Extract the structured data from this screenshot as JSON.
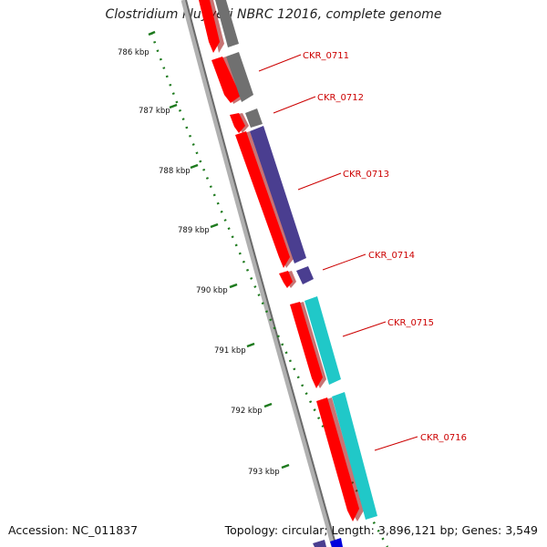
{
  "title": "Clostridium kluyveri NBRC 12016, complete genome",
  "footer": {
    "accession": "Accession: NC_011837",
    "summary": "Topology: circular; Length: 3,896,121 bp; Genes: 3,549"
  },
  "scale_labels": [
    "786 kbp",
    "787 kbp",
    "788 kbp",
    "789 kbp",
    "790 kbp",
    "791 kbp",
    "792 kbp",
    "793 kbp"
  ],
  "gene_labels": [
    "CKR_0711",
    "CKR_0712",
    "CKR_0713",
    "CKR_0714",
    "CKR_0715",
    "CKR_0716"
  ],
  "colors": {
    "strand_red": "#ff0000",
    "gray_gene": "#707070",
    "purple_gene": "#4a3e90",
    "cyan_gene": "#20c8c8",
    "tick_green": "#1e7a1e",
    "label_red": "#cc0000"
  }
}
